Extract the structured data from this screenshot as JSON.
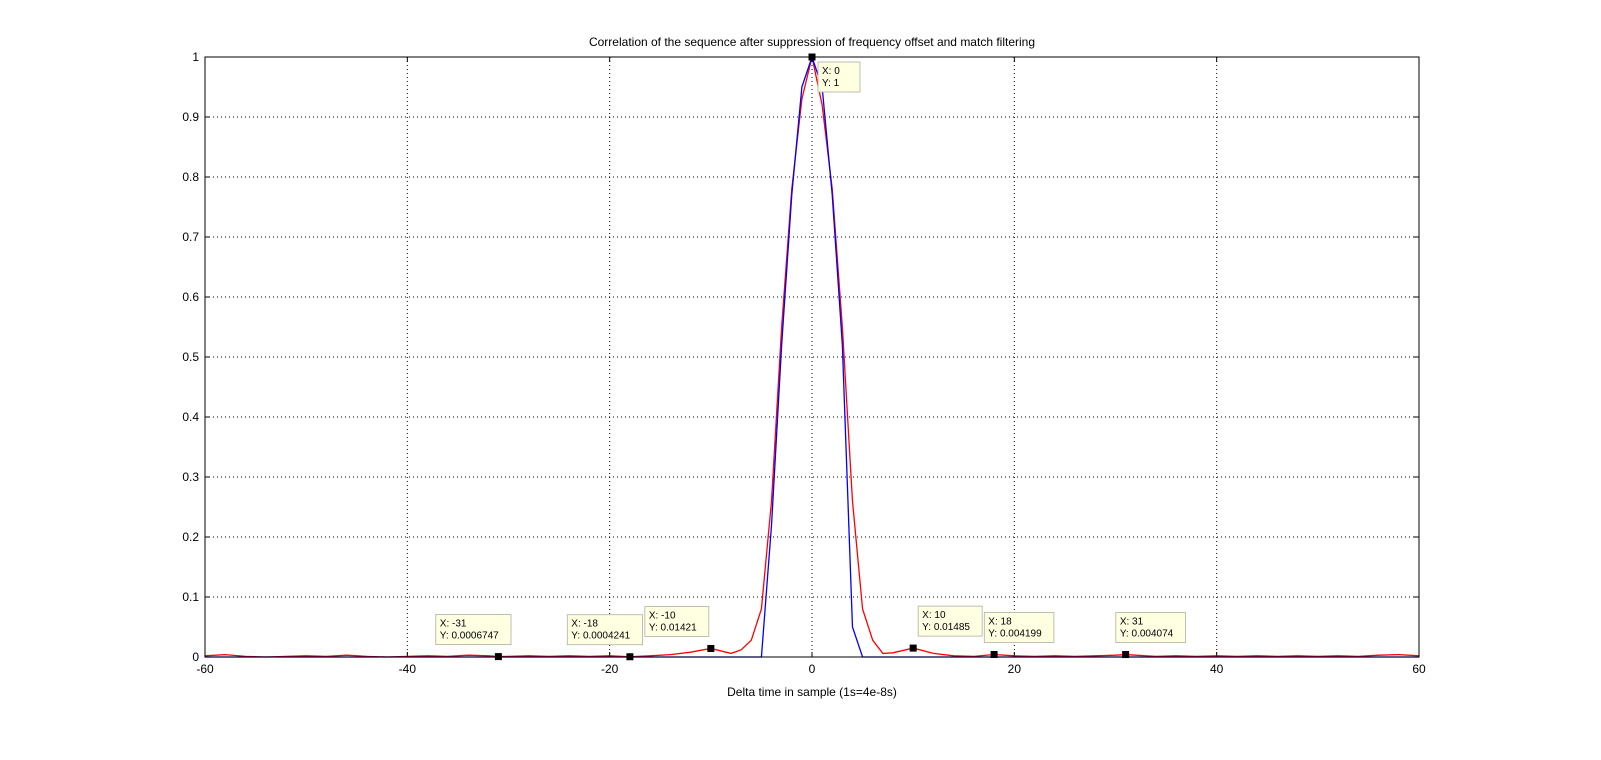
{
  "chart_data": {
    "type": "line",
    "title": "Correlation of the sequence after suppression of frequency offset and match filtering",
    "xlabel": "Delta time in sample (1s=4e-8s)",
    "ylabel": "",
    "xlim": [
      -60,
      60
    ],
    "ylim": [
      0,
      1
    ],
    "grid": true,
    "x_ticks": [
      "-60",
      "-40",
      "-20",
      "0",
      "20",
      "40",
      "60"
    ],
    "y_ticks": [
      "0",
      "0.1",
      "0.2",
      "0.3",
      "0.4",
      "0.5",
      "0.6",
      "0.7",
      "0.8",
      "0.9",
      "1"
    ],
    "series": [
      {
        "color": "#ff0000",
        "x": [
          -60,
          -58,
          -56,
          -54,
          -52,
          -50,
          -48,
          -46,
          -44,
          -42,
          -40,
          -38,
          -36,
          -34,
          -32,
          -31,
          -30,
          -28,
          -26,
          -24,
          -22,
          -20,
          -18,
          -16,
          -14,
          -12,
          -10,
          -8,
          -7,
          -6,
          -5,
          -4,
          -3,
          -2,
          -1,
          0,
          1,
          2,
          3,
          4,
          5,
          6,
          7,
          8,
          10,
          12,
          14,
          16,
          18,
          20,
          22,
          24,
          26,
          28,
          30,
          31,
          32,
          34,
          36,
          38,
          40,
          42,
          44,
          46,
          48,
          50,
          52,
          54,
          56,
          58,
          60
        ],
        "y": [
          0.002,
          0.004,
          0.001,
          0.0,
          0.001,
          0.002,
          0.001,
          0.003,
          0.001,
          0.0,
          0.001,
          0.002,
          0.001,
          0.003,
          0.002,
          0.0007,
          0.001,
          0.002,
          0.001,
          0.002,
          0.001,
          0.002,
          0.0004,
          0.002,
          0.004,
          0.008,
          0.01421,
          0.006,
          0.012,
          0.028,
          0.08,
          0.26,
          0.55,
          0.78,
          0.93,
          1.0,
          0.92,
          0.78,
          0.55,
          0.26,
          0.08,
          0.028,
          0.006,
          0.007,
          0.01485,
          0.006,
          0.002,
          0.001,
          0.004199,
          0.002,
          0.001,
          0.002,
          0.001,
          0.002,
          0.003,
          0.004074,
          0.003,
          0.001,
          0.002,
          0.001,
          0.002,
          0.001,
          0.002,
          0.001,
          0.002,
          0.001,
          0.002,
          0.001,
          0.003,
          0.004,
          0.002
        ]
      },
      {
        "color": "#0000ff",
        "x": [
          -60,
          -50,
          -40,
          -30,
          -20,
          -10,
          -5,
          -4,
          -3,
          -2,
          -1,
          0,
          1,
          2,
          3,
          4,
          5,
          10,
          20,
          30,
          40,
          50,
          60
        ],
        "y": [
          0,
          0,
          0,
          0,
          0,
          0,
          0,
          0.22,
          0.52,
          0.77,
          0.95,
          1.0,
          0.95,
          0.77,
          0.52,
          0.05,
          0,
          0,
          0,
          0,
          0,
          0,
          0
        ]
      }
    ],
    "datatips": [
      {
        "x": 0,
        "y": 1,
        "text": [
          "X: 0",
          "Y: 1"
        ]
      },
      {
        "x": -31,
        "y": 0.0006747,
        "text": [
          "X: -31",
          "Y: 0.0006747"
        ]
      },
      {
        "x": -18,
        "y": 0.0004241,
        "text": [
          "X: -18",
          "Y: 0.0004241"
        ]
      },
      {
        "x": -10,
        "y": 0.01421,
        "text": [
          "X: -10",
          "Y: 0.01421"
        ]
      },
      {
        "x": 10,
        "y": 0.01485,
        "text": [
          "X: 10",
          "Y: 0.01485"
        ]
      },
      {
        "x": 18,
        "y": 0.004199,
        "text": [
          "X: 18",
          "Y: 0.004199"
        ]
      },
      {
        "x": 31,
        "y": 0.004074,
        "text": [
          "X: 31",
          "Y: 0.004074"
        ]
      }
    ]
  }
}
